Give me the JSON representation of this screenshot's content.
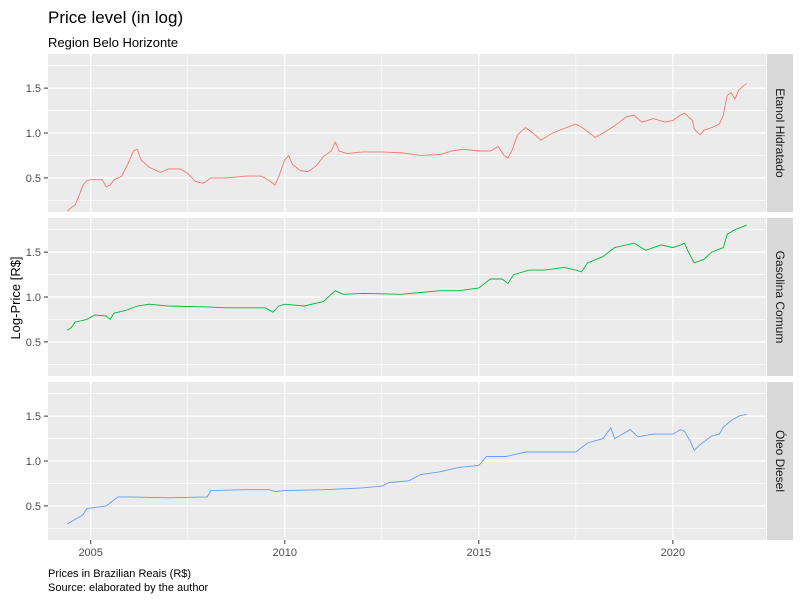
{
  "chart_data": {
    "type": "line",
    "title": "Price level (in log)",
    "subtitle": "Region Belo Horizonte",
    "xlabel": "",
    "ylabel": "Log-Price [R$]",
    "caption_lines": [
      "Prices in Brazilian Reais (R$)",
      "Source: elaborated by the author"
    ],
    "xlim": [
      2003.9,
      2022.4
    ],
    "ylim": [
      0.12,
      1.88
    ],
    "x_ticks": [
      2005,
      2010,
      2015,
      2020
    ],
    "x_tick_labels": [
      "2005",
      "2010",
      "2015",
      "2020"
    ],
    "y_ticks": [
      0.5,
      1.0,
      1.5
    ],
    "y_tick_labels": [
      "0.5",
      "1.0",
      "1.5"
    ],
    "grid": true,
    "legend": "none",
    "facets": [
      {
        "name": "Etanol Hidratado",
        "color": "#F8766D",
        "points": [
          [
            2004.4,
            0.13
          ],
          [
            2004.5,
            0.17
          ],
          [
            2004.6,
            0.2
          ],
          [
            2004.7,
            0.3
          ],
          [
            2004.8,
            0.42
          ],
          [
            2004.9,
            0.47
          ],
          [
            2005.0,
            0.48
          ],
          [
            2005.3,
            0.48
          ],
          [
            2005.4,
            0.4
          ],
          [
            2005.5,
            0.42
          ],
          [
            2005.6,
            0.48
          ],
          [
            2005.8,
            0.52
          ],
          [
            2005.95,
            0.65
          ],
          [
            2006.1,
            0.8
          ],
          [
            2006.2,
            0.82
          ],
          [
            2006.3,
            0.7
          ],
          [
            2006.5,
            0.62
          ],
          [
            2006.8,
            0.56
          ],
          [
            2007.0,
            0.6
          ],
          [
            2007.3,
            0.6
          ],
          [
            2007.5,
            0.55
          ],
          [
            2007.7,
            0.46
          ],
          [
            2007.9,
            0.44
          ],
          [
            2008.1,
            0.5
          ],
          [
            2008.5,
            0.5
          ],
          [
            2009.0,
            0.52
          ],
          [
            2009.4,
            0.52
          ],
          [
            2009.6,
            0.47
          ],
          [
            2009.75,
            0.42
          ],
          [
            2009.85,
            0.52
          ],
          [
            2010.0,
            0.7
          ],
          [
            2010.1,
            0.75
          ],
          [
            2010.2,
            0.65
          ],
          [
            2010.4,
            0.58
          ],
          [
            2010.6,
            0.57
          ],
          [
            2010.8,
            0.63
          ],
          [
            2011.0,
            0.74
          ],
          [
            2011.2,
            0.8
          ],
          [
            2011.3,
            0.9
          ],
          [
            2011.4,
            0.8
          ],
          [
            2011.6,
            0.77
          ],
          [
            2012.0,
            0.79
          ],
          [
            2012.5,
            0.79
          ],
          [
            2013.0,
            0.78
          ],
          [
            2013.5,
            0.75
          ],
          [
            2014.0,
            0.76
          ],
          [
            2014.3,
            0.8
          ],
          [
            2014.6,
            0.82
          ],
          [
            2015.0,
            0.8
          ],
          [
            2015.3,
            0.8
          ],
          [
            2015.5,
            0.85
          ],
          [
            2015.65,
            0.75
          ],
          [
            2015.75,
            0.72
          ],
          [
            2015.85,
            0.8
          ],
          [
            2016.0,
            0.98
          ],
          [
            2016.2,
            1.06
          ],
          [
            2016.4,
            1.0
          ],
          [
            2016.6,
            0.92
          ],
          [
            2016.9,
            1.0
          ],
          [
            2017.2,
            1.05
          ],
          [
            2017.5,
            1.1
          ],
          [
            2017.7,
            1.05
          ],
          [
            2018.0,
            0.95
          ],
          [
            2018.2,
            1.0
          ],
          [
            2018.5,
            1.08
          ],
          [
            2018.8,
            1.18
          ],
          [
            2019.0,
            1.2
          ],
          [
            2019.2,
            1.12
          ],
          [
            2019.5,
            1.16
          ],
          [
            2019.8,
            1.12
          ],
          [
            2020.0,
            1.14
          ],
          [
            2020.2,
            1.2
          ],
          [
            2020.3,
            1.22
          ],
          [
            2020.5,
            1.14
          ],
          [
            2020.55,
            1.05
          ],
          [
            2020.6,
            1.02
          ],
          [
            2020.7,
            0.98
          ],
          [
            2020.8,
            1.03
          ],
          [
            2021.0,
            1.06
          ],
          [
            2021.2,
            1.1
          ],
          [
            2021.3,
            1.2
          ],
          [
            2021.4,
            1.42
          ],
          [
            2021.5,
            1.45
          ],
          [
            2021.6,
            1.38
          ],
          [
            2021.7,
            1.48
          ],
          [
            2021.8,
            1.52
          ],
          [
            2021.9,
            1.55
          ]
        ]
      },
      {
        "name": "Gasolina Comum",
        "color": "#00BA38",
        "points": [
          [
            2004.4,
            0.63
          ],
          [
            2004.5,
            0.66
          ],
          [
            2004.6,
            0.72
          ],
          [
            2004.9,
            0.75
          ],
          [
            2005.1,
            0.8
          ],
          [
            2005.4,
            0.79
          ],
          [
            2005.5,
            0.75
          ],
          [
            2005.6,
            0.82
          ],
          [
            2005.9,
            0.85
          ],
          [
            2006.2,
            0.9
          ],
          [
            2006.5,
            0.92
          ],
          [
            2007.0,
            0.9
          ],
          [
            2008.0,
            0.89
          ],
          [
            2008.5,
            0.88
          ],
          [
            2009.0,
            0.88
          ],
          [
            2009.5,
            0.88
          ],
          [
            2009.7,
            0.83
          ],
          [
            2009.85,
            0.9
          ],
          [
            2010.0,
            0.92
          ],
          [
            2010.5,
            0.9
          ],
          [
            2011.0,
            0.95
          ],
          [
            2011.3,
            1.07
          ],
          [
            2011.5,
            1.03
          ],
          [
            2012.0,
            1.04
          ],
          [
            2013.0,
            1.03
          ],
          [
            2013.5,
            1.05
          ],
          [
            2014.0,
            1.07
          ],
          [
            2014.5,
            1.07
          ],
          [
            2015.0,
            1.1
          ],
          [
            2015.3,
            1.2
          ],
          [
            2015.6,
            1.2
          ],
          [
            2015.75,
            1.15
          ],
          [
            2015.9,
            1.25
          ],
          [
            2016.3,
            1.3
          ],
          [
            2016.7,
            1.3
          ],
          [
            2017.2,
            1.33
          ],
          [
            2017.5,
            1.3
          ],
          [
            2017.65,
            1.28
          ],
          [
            2017.8,
            1.38
          ],
          [
            2018.2,
            1.45
          ],
          [
            2018.5,
            1.55
          ],
          [
            2018.8,
            1.58
          ],
          [
            2019.0,
            1.6
          ],
          [
            2019.3,
            1.52
          ],
          [
            2019.7,
            1.58
          ],
          [
            2020.0,
            1.55
          ],
          [
            2020.2,
            1.58
          ],
          [
            2020.3,
            1.6
          ],
          [
            2020.4,
            1.5
          ],
          [
            2020.55,
            1.38
          ],
          [
            2020.8,
            1.42
          ],
          [
            2021.0,
            1.5
          ],
          [
            2021.3,
            1.55
          ],
          [
            2021.4,
            1.7
          ],
          [
            2021.6,
            1.75
          ],
          [
            2021.9,
            1.8
          ]
        ]
      },
      {
        "name": "Óleo Diesel",
        "color": "#619CFF",
        "points": [
          [
            2004.4,
            0.3
          ],
          [
            2004.6,
            0.35
          ],
          [
            2004.8,
            0.4
          ],
          [
            2004.9,
            0.47
          ],
          [
            2005.4,
            0.5
          ],
          [
            2005.7,
            0.6
          ],
          [
            2006.0,
            0.6
          ],
          [
            2007.0,
            0.59
          ],
          [
            2008.0,
            0.6
          ],
          [
            2008.1,
            0.67
          ],
          [
            2009.0,
            0.68
          ],
          [
            2009.6,
            0.68
          ],
          [
            2009.75,
            0.66
          ],
          [
            2010.0,
            0.67
          ],
          [
            2011.0,
            0.68
          ],
          [
            2011.5,
            0.69
          ],
          [
            2012.0,
            0.7
          ],
          [
            2012.5,
            0.72
          ],
          [
            2012.7,
            0.76
          ],
          [
            2013.2,
            0.78
          ],
          [
            2013.5,
            0.85
          ],
          [
            2014.0,
            0.88
          ],
          [
            2014.5,
            0.93
          ],
          [
            2015.0,
            0.95
          ],
          [
            2015.2,
            1.05
          ],
          [
            2015.7,
            1.05
          ],
          [
            2016.2,
            1.1
          ],
          [
            2017.0,
            1.1
          ],
          [
            2017.5,
            1.1
          ],
          [
            2017.8,
            1.2
          ],
          [
            2018.2,
            1.25
          ],
          [
            2018.4,
            1.37
          ],
          [
            2018.5,
            1.25
          ],
          [
            2018.7,
            1.3
          ],
          [
            2018.9,
            1.35
          ],
          [
            2019.1,
            1.27
          ],
          [
            2019.5,
            1.3
          ],
          [
            2020.0,
            1.3
          ],
          [
            2020.2,
            1.35
          ],
          [
            2020.3,
            1.33
          ],
          [
            2020.45,
            1.22
          ],
          [
            2020.55,
            1.12
          ],
          [
            2020.7,
            1.18
          ],
          [
            2021.0,
            1.28
          ],
          [
            2021.2,
            1.3
          ],
          [
            2021.3,
            1.38
          ],
          [
            2021.5,
            1.45
          ],
          [
            2021.7,
            1.5
          ],
          [
            2021.9,
            1.52
          ]
        ]
      }
    ]
  }
}
